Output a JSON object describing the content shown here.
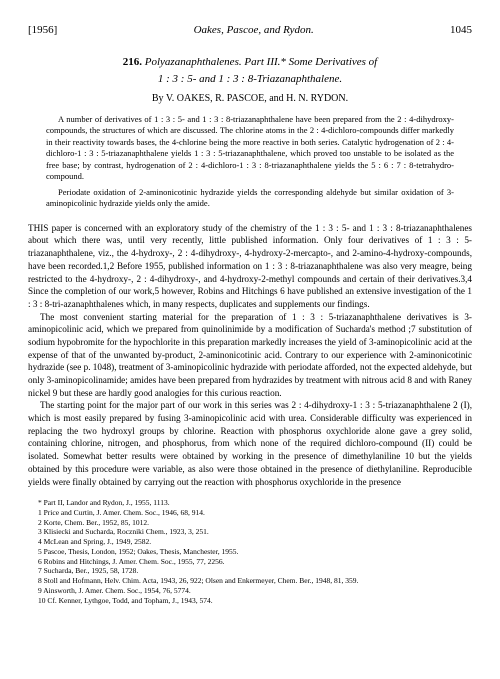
{
  "header": {
    "year": "[1956]",
    "authors_short": "Oakes, Pascoe, and Rydon.",
    "page_no": "1045"
  },
  "title": {
    "number": "216.",
    "line1": "Polyazanaphthalenes.   Part III.*   Some Derivatives of",
    "line2": "1 : 3 : 5- and 1 : 3 : 8-Triazanaphthalene."
  },
  "authors": "By V. OAKES, R. PASCOE, and H. N. RYDON.",
  "abstract": {
    "p1": "A number of derivatives of 1 : 3 : 5- and 1 : 3 : 8-triazanaphthalene have been prepared from the 2 : 4-dihydroxy-compounds, the structures of which are discussed. The chlorine atoms in the 2 : 4-dichloro-compounds differ markedly in their reactivity towards bases, the 4-chlorine being the more reactive in both series. Catalytic hydrogenation of 2 : 4-dichloro-1 : 3 : 5-triazanaphthalene yields 1 : 3 : 5-triazanaphthalene, which proved too unstable to be isolated as the free base; by contrast, hydrogenation of 2 : 4-dichloro-1 : 3 : 8-triazanaphthalene yields the 5 : 6 : 7 : 8-tetrahydro-compound.",
    "p2": "Periodate oxidation of 2-aminonicotinic hydrazide yields the corresponding aldehyde but similar oxidation of 3-aminopicolinic hydrazide yields only the amide."
  },
  "body": {
    "p1_a": "THIS",
    "p1_b": " paper is concerned with an exploratory study of the chemistry of the 1 : 3 : 5- and 1 : 3 : 8-triazanaphthalenes about which there was, until very recently, little published information. Only four derivatives of 1 : 3 : 5-triazanaphthalene, viz., the 4-hydroxy-, 2 : 4-dihydroxy-, 4-hydroxy-2-mercapto-, and 2-amino-4-hydroxy-compounds, have been recorded.1,2 Before 1955, published information on 1 : 3 : 8-triazanaphthalene was also very meagre, being restricted to the 4-hydroxy-, 2 : 4-dihydroxy-, and 4-hydroxy-2-methyl compounds and certain of their derivatives.3,4 Since the completion of our work,5 however, Robins and Hitchings 6 have published an extensive investigation of the 1 : 3 : 8-tri-azanaphthalenes which, in many respects, duplicates and supplements our findings.",
    "p2": "The most convenient starting material for the preparation of 1 : 3 : 5-triazanaphthalene derivatives is 3-aminopicolinic acid, which we prepared from quinolinimide by a modification of Sucharda's method ;7 substitution of sodium hypobromite for the hypochlorite in this preparation markedly increases the yield of 3-aminopicolinic acid at the expense of that of the unwanted by-product, 2-aminonicotinic acid. Contrary to our experience with 2-aminonicotinic hydrazide (see p. 1048), treatment of 3-aminopicolinic hydrazide with periodate afforded, not the expected aldehyde, but only 3-aminopicolinamide; amides have been prepared from hydrazides by treatment with nitrous acid 8 and with Raney nickel 9 but these are hardly good analogies for this curious reaction.",
    "p3": "The starting point for the major part of our work in this series was 2 : 4-dihydroxy-1 : 3 : 5-triazanaphthalene 2 (I), which is most easily prepared by fusing 3-aminopicolinic acid with urea. Considerable difficulty was experienced in replacing the two hydroxyl groups by chlorine. Reaction with phosphorus oxychloride alone gave a grey solid, containing chlorine, nitrogen, and phosphorus, from which none of the required dichloro-compound (II) could be isolated. Somewhat better results were obtained by working in the presence of dimethylaniline 10 but the yields obtained by this procedure were variable, as also were those obtained in the presence of diethylaniline. Reproducible yields were finally obtained by carrying out the reaction with phosphorus oxychloride in the presence"
  },
  "footnotes": {
    "f0": "* Part II, Landor and Rydon, J., 1955, 1113.",
    "f1": "1 Price and Curtin, J. Amer. Chem. Soc., 1946, 68, 914.",
    "f2": "2 Korte, Chem. Ber., 1952, 85, 1012.",
    "f3": "3 Klisiecki and Sucharda, Roczniki Chem., 1923, 3, 251.",
    "f4": "4 McLean and Spring, J., 1949, 2582.",
    "f5": "5 Pascoe, Thesis, London, 1952; Oakes, Thesis, Manchester, 1955.",
    "f6": "6 Robins and Hitchings, J. Amer. Chem. Soc., 1955, 77, 2256.",
    "f7": "7 Sucharda, Ber., 1925, 58, 1728.",
    "f8": "8 Stoll and Hofmann, Helv. Chim. Acta, 1943, 26, 922; Olsen and Enkermeyer, Chem. Ber., 1948, 81, 359.",
    "f9": "9 Ainsworth, J. Amer. Chem. Soc., 1954, 76, 5774.",
    "f10": "10 Cf. Kenner, Lythgoe, Todd, and Topham, J., 1943, 574."
  }
}
